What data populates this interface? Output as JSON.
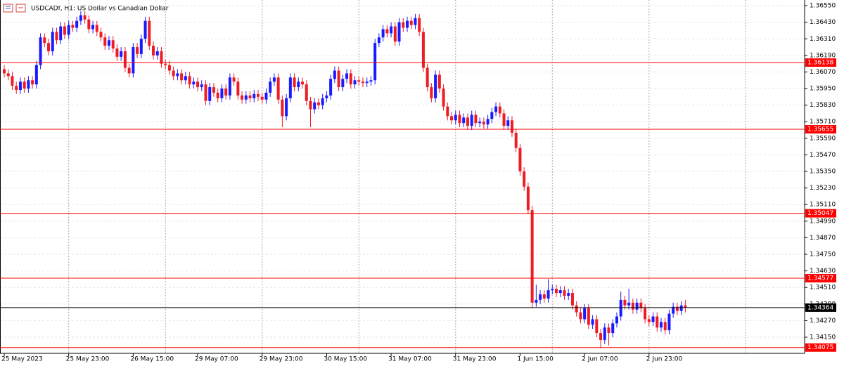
{
  "chart_data": {
    "type": "candlestick",
    "title": "USDCADf, H1:  US Dollar vs Canadian Dollar",
    "up_color": "#1a1aff",
    "down_color": "#ee1c25",
    "grid": true,
    "ylim": [
      1.34033,
      1.36591
    ],
    "yticks": [
      {
        "value": 1.3655,
        "label": "1.36550"
      },
      {
        "value": 1.3643,
        "label": "1.36430"
      },
      {
        "value": 1.3631,
        "label": "1.36310"
      },
      {
        "value": 1.3619,
        "label": "1.36190"
      },
      {
        "value": 1.3607,
        "label": "1.36070"
      },
      {
        "value": 1.3595,
        "label": "1.35950"
      },
      {
        "value": 1.3583,
        "label": "1.35830"
      },
      {
        "value": 1.3571,
        "label": "1.35710"
      },
      {
        "value": 1.3559,
        "label": "1.35590"
      },
      {
        "value": 1.3547,
        "label": "1.35470"
      },
      {
        "value": 1.3535,
        "label": "1.35350"
      },
      {
        "value": 1.3523,
        "label": "1.35230"
      },
      {
        "value": 1.3511,
        "label": "1.35110"
      },
      {
        "value": 1.3499,
        "label": "1.34990"
      },
      {
        "value": 1.3487,
        "label": "1.34870"
      },
      {
        "value": 1.3475,
        "label": "1.34750"
      },
      {
        "value": 1.3463,
        "label": "1.34630"
      },
      {
        "value": 1.3451,
        "label": "1.34510"
      },
      {
        "value": 1.3439,
        "label": "1.34390"
      },
      {
        "value": 1.3427,
        "label": "1.34270"
      },
      {
        "value": 1.3415,
        "label": "1.34150"
      }
    ],
    "levels": [
      {
        "value": 1.36138,
        "color": "#ff0000"
      },
      {
        "value": 1.35655,
        "color": "#ff0000"
      },
      {
        "value": 1.35047,
        "color": "#ff0000"
      },
      {
        "value": 1.34577,
        "color": "#ff0000"
      },
      {
        "value": 1.34075,
        "color": "#ff0000"
      },
      {
        "value": 1.34364,
        "color": "#000000"
      }
    ],
    "categories": [
      "25 May 2023",
      null,
      null,
      null,
      null,
      null,
      null,
      null,
      null,
      null,
      null,
      null,
      null,
      null,
      null,
      null,
      "25 May 23:00",
      null,
      null,
      null,
      null,
      null,
      null,
      null,
      null,
      null,
      null,
      null,
      null,
      null,
      null,
      null,
      "26 May 15:00",
      null,
      null,
      null,
      null,
      null,
      null,
      null,
      null,
      null,
      null,
      null,
      null,
      null,
      null,
      null,
      "29 May 07:00",
      null,
      null,
      null,
      null,
      null,
      null,
      null,
      null,
      null,
      null,
      null,
      null,
      null,
      null,
      null,
      "29 May 23:00",
      null,
      null,
      null,
      null,
      null,
      null,
      null,
      null,
      null,
      null,
      null,
      null,
      null,
      null,
      null,
      "30 May 15:00",
      null,
      null,
      null,
      null,
      null,
      null,
      null,
      null,
      null,
      null,
      null,
      null,
      null,
      null,
      null,
      "31 May 07:00",
      null,
      null,
      null,
      null,
      null,
      null,
      null,
      null,
      null,
      null,
      null,
      null,
      null,
      null,
      null,
      "31 May 23:00",
      null,
      null,
      null,
      null,
      null,
      null,
      null,
      null,
      null,
      null,
      null,
      null,
      null,
      null,
      null,
      "1 Jun 15:00",
      null,
      null,
      null,
      null,
      null,
      null,
      null,
      null,
      null,
      null,
      null,
      null,
      null,
      null,
      null,
      "2 Jun 07:00",
      null,
      null,
      null,
      null,
      null,
      null,
      null,
      null,
      null,
      null,
      null,
      null,
      null,
      null,
      null,
      "2 Jun 23:00",
      null,
      null,
      null,
      null,
      null,
      null,
      null,
      null,
      null
    ],
    "open": [
      1.3609,
      1.3606,
      1.3604,
      1.3597,
      1.3594,
      1.36,
      1.3595,
      1.3601,
      1.3598,
      1.3612,
      1.3632,
      1.3628,
      1.3622,
      1.3636,
      1.363,
      1.364,
      1.3634,
      1.3641,
      1.3639,
      1.3644,
      1.3648,
      1.3645,
      1.3638,
      1.3641,
      1.3636,
      1.3632,
      1.3626,
      1.363,
      1.3624,
      1.3618,
      1.3622,
      1.361,
      1.3606,
      1.3625,
      1.362,
      1.3631,
      1.3644,
      1.3626,
      1.3619,
      1.3622,
      1.3613,
      1.3612,
      1.3608,
      1.3604,
      1.3606,
      1.3601,
      1.3604,
      1.3598,
      1.36,
      1.3596,
      1.3598,
      1.3586,
      1.3596,
      1.3592,
      1.3588,
      1.3595,
      1.359,
      1.3603,
      1.36,
      1.359,
      1.3587,
      1.359,
      1.3588,
      1.3591,
      1.3589,
      1.3587,
      1.3592,
      1.36,
      1.3603,
      1.3587,
      1.3575,
      1.3588,
      1.3603,
      1.3596,
      1.36,
      1.3598,
      1.3586,
      1.358,
      1.3585,
      1.3583,
      1.3588,
      1.359,
      1.3602,
      1.3608,
      1.3596,
      1.3602,
      1.3606,
      1.3598,
      1.3601,
      1.36,
      1.3599,
      1.36,
      1.3601,
      1.3628,
      1.3632,
      1.3638,
      1.3635,
      1.364,
      1.3629,
      1.3643,
      1.3639,
      1.3644,
      1.3641,
      1.3646,
      1.3636,
      1.361,
      1.3596,
      1.3588,
      1.3605,
      1.3595,
      1.3582,
      1.3575,
      1.3572,
      1.3576,
      1.357,
      1.3574,
      1.3568,
      1.3576,
      1.357,
      1.3571,
      1.3569,
      1.3573,
      1.3578,
      1.3582,
      1.3577,
      1.3568,
      1.3572,
      1.3563,
      1.3552,
      1.3535,
      1.3524,
      1.3507,
      1.344,
      1.3442,
      1.3446,
      1.3443,
      1.3449,
      1.345,
      1.3447,
      1.3449,
      1.3445,
      1.3447,
      1.3438,
      1.3433,
      1.3428,
      1.3436,
      1.3424,
      1.3428,
      1.3418,
      1.3413,
      1.3422,
      1.3418,
      1.3425,
      1.343,
      1.3442,
      1.3438,
      1.344,
      1.3435,
      1.344,
      1.3436,
      1.3428,
      1.3426,
      1.343,
      1.3422,
      1.3426,
      1.342,
      1.3432,
      1.3437,
      1.3434,
      1.3438
    ],
    "high": [
      1.3612,
      1.3609,
      1.3607,
      1.36,
      1.3603,
      1.3603,
      1.3604,
      1.3604,
      1.3615,
      1.3635,
      1.3635,
      1.3631,
      1.3639,
      1.3639,
      1.3643,
      1.3643,
      1.3644,
      1.3644,
      1.3647,
      1.3651,
      1.3651,
      1.3648,
      1.3644,
      1.3644,
      1.3639,
      1.3635,
      1.3633,
      1.3633,
      1.3627,
      1.3625,
      1.3625,
      1.3613,
      1.3628,
      1.3628,
      1.3634,
      1.3647,
      1.3647,
      1.3629,
      1.3625,
      1.3625,
      1.3616,
      1.3615,
      1.3611,
      1.3609,
      1.3609,
      1.3607,
      1.3607,
      1.3603,
      1.3603,
      1.3601,
      1.3601,
      1.3599,
      1.3599,
      1.3595,
      1.3598,
      1.3598,
      1.3606,
      1.3606,
      1.3603,
      1.3593,
      1.3593,
      1.3593,
      1.3594,
      1.3594,
      1.3592,
      1.3595,
      1.3603,
      1.3606,
      1.3606,
      1.359,
      1.3591,
      1.3606,
      1.3606,
      1.3603,
      1.3603,
      1.3601,
      1.3589,
      1.3588,
      1.3588,
      1.3591,
      1.3593,
      1.3605,
      1.3611,
      1.3611,
      1.3605,
      1.3609,
      1.3609,
      1.3604,
      1.3604,
      1.3603,
      1.3603,
      1.3604,
      1.3631,
      1.3635,
      1.3641,
      1.3641,
      1.3643,
      1.3643,
      1.3646,
      1.3646,
      1.3647,
      1.3647,
      1.3649,
      1.3649,
      1.3639,
      1.3613,
      1.3599,
      1.3608,
      1.3608,
      1.3598,
      1.3585,
      1.3578,
      1.3579,
      1.3579,
      1.3577,
      1.3577,
      1.3579,
      1.3579,
      1.3574,
      1.3574,
      1.3576,
      1.3581,
      1.3585,
      1.3585,
      1.358,
      1.3575,
      1.3575,
      1.3566,
      1.3555,
      1.3538,
      1.3527,
      1.351,
      1.3453,
      1.3449,
      1.3449,
      1.3457,
      1.3453,
      1.3453,
      1.3452,
      1.3452,
      1.345,
      1.345,
      1.3441,
      1.3436,
      1.3439,
      1.3439,
      1.3431,
      1.3431,
      1.3421,
      1.3425,
      1.3425,
      1.3428,
      1.3433,
      1.3448,
      1.3445,
      1.345,
      1.3443,
      1.3443,
      1.3443,
      1.3439,
      1.3431,
      1.3433,
      1.3433,
      1.3429,
      1.3429,
      1.3435,
      1.344,
      1.344,
      1.3441,
      1.3442
    ],
    "low": [
      1.3603,
      1.3601,
      1.3594,
      1.3591,
      1.3591,
      1.3592,
      1.3592,
      1.3595,
      1.3595,
      1.3609,
      1.3625,
      1.3619,
      1.3619,
      1.3627,
      1.3627,
      1.3631,
      1.3631,
      1.3636,
      1.3636,
      1.3641,
      1.3642,
      1.3635,
      1.3635,
      1.3633,
      1.3629,
      1.3623,
      1.3623,
      1.3621,
      1.3615,
      1.3615,
      1.3607,
      1.3603,
      1.3603,
      1.3617,
      1.3617,
      1.3628,
      1.3623,
      1.3616,
      1.3616,
      1.361,
      1.3609,
      1.3605,
      1.3601,
      1.3601,
      1.3598,
      1.3598,
      1.3595,
      1.3595,
      1.3593,
      1.3593,
      1.3583,
      1.3583,
      1.3589,
      1.3585,
      1.3585,
      1.3587,
      1.3587,
      1.3597,
      1.3587,
      1.3584,
      1.3584,
      1.3585,
      1.3585,
      1.3586,
      1.3584,
      1.3584,
      1.3589,
      1.3597,
      1.3584,
      1.3567,
      1.3572,
      1.3585,
      1.3593,
      1.3593,
      1.3595,
      1.3583,
      1.3567,
      1.3577,
      1.358,
      1.358,
      1.3585,
      1.3587,
      1.3599,
      1.3593,
      1.3593,
      1.3599,
      1.3595,
      1.3595,
      1.3597,
      1.3596,
      1.3596,
      1.3597,
      1.3598,
      1.3625,
      1.3629,
      1.3632,
      1.3632,
      1.3626,
      1.3626,
      1.3636,
      1.3636,
      1.3638,
      1.3638,
      1.3633,
      1.3607,
      1.3593,
      1.3585,
      1.3585,
      1.3592,
      1.3579,
      1.3572,
      1.3569,
      1.3569,
      1.3567,
      1.3567,
      1.3565,
      1.3565,
      1.3567,
      1.3567,
      1.3566,
      1.3566,
      1.357,
      1.3575,
      1.3574,
      1.3565,
      1.3565,
      1.356,
      1.3549,
      1.3532,
      1.3521,
      1.3504,
      1.3436,
      1.3437,
      1.3439,
      1.344,
      1.344,
      1.3446,
      1.3444,
      1.3444,
      1.3442,
      1.3442,
      1.3435,
      1.343,
      1.3425,
      1.3425,
      1.3421,
      1.3421,
      1.3415,
      1.3407,
      1.341,
      1.3409,
      1.3415,
      1.3422,
      1.3427,
      1.3435,
      1.3435,
      1.3432,
      1.3432,
      1.3433,
      1.3425,
      1.3423,
      1.3423,
      1.3419,
      1.3419,
      1.3417,
      1.3417,
      1.3429,
      1.3431,
      1.3431,
      1.3433
    ],
    "close": [
      1.3606,
      1.3604,
      1.3597,
      1.3594,
      1.36,
      1.3595,
      1.3601,
      1.3598,
      1.3612,
      1.3632,
      1.3628,
      1.3622,
      1.3636,
      1.363,
      1.364,
      1.3634,
      1.3641,
      1.3639,
      1.3644,
      1.3648,
      1.3645,
      1.3638,
      1.3641,
      1.3636,
      1.3632,
      1.3626,
      1.363,
      1.3624,
      1.3618,
      1.3622,
      1.361,
      1.3606,
      1.3625,
      1.362,
      1.3631,
      1.3644,
      1.3626,
      1.3619,
      1.3622,
      1.3613,
      1.3612,
      1.3608,
      1.3604,
      1.3606,
      1.3601,
      1.3604,
      1.3598,
      1.36,
      1.3596,
      1.3598,
      1.3586,
      1.3596,
      1.3592,
      1.3588,
      1.3595,
      1.359,
      1.3603,
      1.36,
      1.359,
      1.3587,
      1.359,
      1.3588,
      1.3591,
      1.3589,
      1.3587,
      1.3592,
      1.36,
      1.3603,
      1.3587,
      1.3575,
      1.3588,
      1.3603,
      1.3596,
      1.36,
      1.3598,
      1.3586,
      1.358,
      1.3585,
      1.3583,
      1.3588,
      1.359,
      1.3602,
      1.3608,
      1.3596,
      1.3602,
      1.3606,
      1.3598,
      1.3601,
      1.36,
      1.3599,
      1.36,
      1.3601,
      1.3628,
      1.3632,
      1.3638,
      1.3635,
      1.364,
      1.3629,
      1.3643,
      1.3639,
      1.3644,
      1.3641,
      1.3646,
      1.3636,
      1.361,
      1.3596,
      1.3588,
      1.3605,
      1.3595,
      1.3582,
      1.3575,
      1.3572,
      1.3576,
      1.357,
      1.3574,
      1.3568,
      1.3576,
      1.357,
      1.3571,
      1.3569,
      1.3573,
      1.3578,
      1.3582,
      1.3577,
      1.3568,
      1.3572,
      1.3563,
      1.3552,
      1.3535,
      1.3524,
      1.3507,
      1.344,
      1.3442,
      1.3446,
      1.3443,
      1.3449,
      1.345,
      1.3447,
      1.3449,
      1.3445,
      1.3447,
      1.3438,
      1.3433,
      1.3428,
      1.3436,
      1.3424,
      1.3428,
      1.3418,
      1.3413,
      1.3422,
      1.3418,
      1.3425,
      1.343,
      1.3442,
      1.3438,
      1.344,
      1.3435,
      1.344,
      1.3436,
      1.3428,
      1.3426,
      1.343,
      1.3422,
      1.3426,
      1.342,
      1.3432,
      1.3437,
      1.3434,
      1.3438,
      1.34364
    ]
  }
}
